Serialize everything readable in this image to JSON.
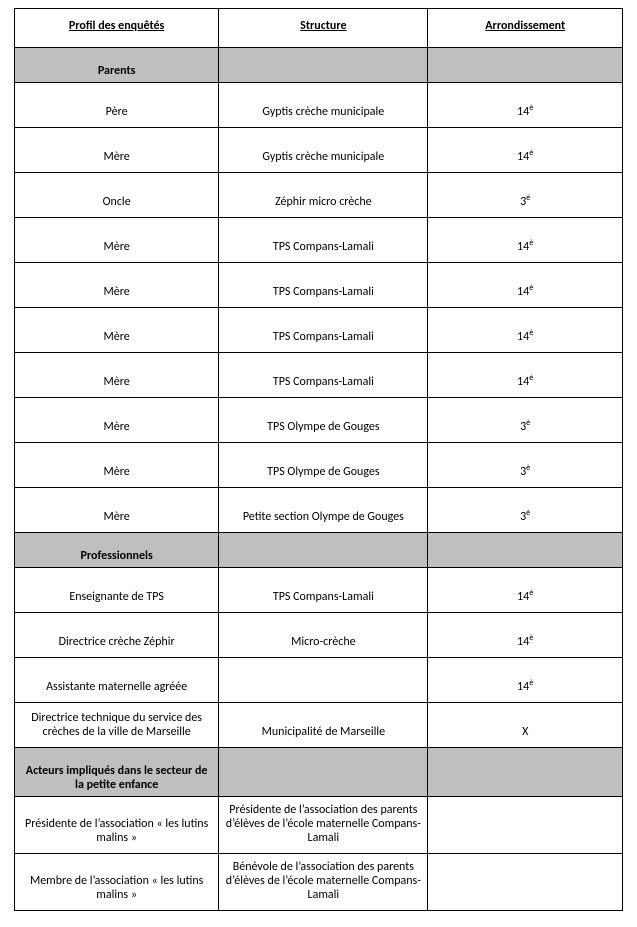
{
  "headers": {
    "col1": "Profil des enquêtés",
    "col2": "Structure",
    "col3": "Arrondissement"
  },
  "sections": {
    "parents": "Parents",
    "professionnels": "Professionnels",
    "acteurs": "Acteurs impliqués dans le secteur de la petite enfance"
  },
  "parents_rows": [
    {
      "profil": "Père",
      "structure": "Gyptis crèche municipale",
      "arr_num": "14",
      "arr_sup": "è"
    },
    {
      "profil": "Mère",
      "structure": "Gyptis crèche municipale",
      "arr_num": "14",
      "arr_sup": "è"
    },
    {
      "profil": "Oncle",
      "structure": "Zéphir micro crèche",
      "arr_num": "3",
      "arr_sup": "è"
    },
    {
      "profil": "Mère",
      "structure": "TPS Compans-Lamali",
      "arr_num": "14",
      "arr_sup": "è"
    },
    {
      "profil": "Mère",
      "structure": "TPS Compans-Lamali",
      "arr_num": "14",
      "arr_sup": "è"
    },
    {
      "profil": "Mère",
      "structure": "TPS Compans-Lamali",
      "arr_num": "14",
      "arr_sup": "è"
    },
    {
      "profil": "Mère",
      "structure": "TPS Compans-Lamali",
      "arr_num": "14",
      "arr_sup": "è"
    },
    {
      "profil": "Mère",
      "structure": "TPS Olympe de Gouges",
      "arr_num": "3",
      "arr_sup": "è"
    },
    {
      "profil": "Mère",
      "structure": "TPS Olympe de Gouges",
      "arr_num": "3",
      "arr_sup": "è"
    },
    {
      "profil": "Mère",
      "structure": "Petite section Olympe de Gouges",
      "arr_num": "3",
      "arr_sup": "è"
    }
  ],
  "prof_rows": [
    {
      "profil": "Enseignante de TPS",
      "structure": "TPS Compans-Lamali",
      "arr_num": "14",
      "arr_sup": "è"
    },
    {
      "profil": "Directrice crèche Zéphir",
      "structure": "Micro-crèche",
      "arr_num": "14",
      "arr_sup": "è"
    },
    {
      "profil": "Assistante maternelle agréée",
      "structure": "",
      "arr_num": "14",
      "arr_sup": "è"
    },
    {
      "profil": "Directrice technique du service des crèches de la ville de Marseille",
      "structure": "Municipalité de Marseille",
      "arr_num": "X",
      "arr_sup": ""
    }
  ],
  "acteurs_rows": [
    {
      "profil": "Présidente de l’association « les lutins malins »",
      "structure": "Présidente de l’association des parents d’élèves de l’école maternelle Compans-Lamali",
      "arr_num": "",
      "arr_sup": ""
    },
    {
      "profil": "Membre de l’association  « les lutins malins »",
      "structure": "Bénévole de l’association des parents d’élèves de l’école maternelle Compans-Lamali",
      "arr_num": "",
      "arr_sup": ""
    }
  ]
}
